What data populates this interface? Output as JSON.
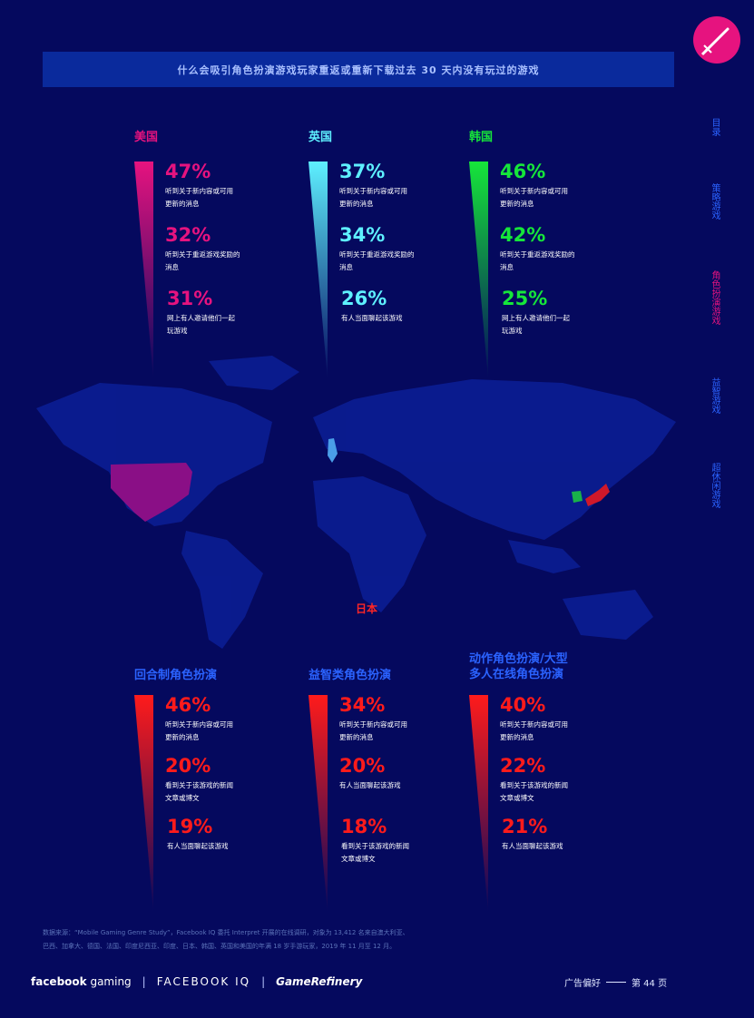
{
  "header": {
    "title": "什么会吸引角色扮演游戏玩家重返或重新下载过去 30 天内没有玩过的游戏"
  },
  "side_nav": {
    "items": [
      {
        "label": "目录",
        "active": false
      },
      {
        "label": "策略游戏",
        "active": false
      },
      {
        "label": "角色扮演游戏",
        "active": true
      },
      {
        "label": "益智游戏",
        "active": false
      },
      {
        "label": "超休闲游戏",
        "active": false
      }
    ]
  },
  "map_label": "日本",
  "colors": {
    "us": "#e6137f",
    "uk": "#5ef0ff",
    "kr": "#16e63a",
    "jp": "#ff1b1b",
    "nav": "#2b63ff",
    "background": "#05095e"
  },
  "chart_data": [
    {
      "type": "bar",
      "title": "美国",
      "categories": [
        "听到关于新内容或可用更新的消息",
        "听到关于重返游戏奖励的消息",
        "网上有人邀请他们一起玩游戏"
      ],
      "values": [
        47,
        32,
        31
      ],
      "value_labels": [
        "47%",
        "32%",
        "31%"
      ],
      "text_lines": [
        [
          "听到关于新内容或可用",
          "更新的消息"
        ],
        [
          "听到关于重返游戏奖励的",
          "消息"
        ],
        [
          "网上有人邀请他们一起",
          "玩游戏"
        ]
      ],
      "color": "#e6137f"
    },
    {
      "type": "bar",
      "title": "英国",
      "categories": [
        "听到关于新内容或可用更新的消息",
        "听到关于重返游戏奖励的消息",
        "有人当面聊起该游戏"
      ],
      "values": [
        37,
        34,
        26
      ],
      "value_labels": [
        "37%",
        "34%",
        "26%"
      ],
      "text_lines": [
        [
          "听到关于新内容或可用",
          "更新的消息"
        ],
        [
          "听到关于重返游戏奖励的",
          "消息"
        ],
        [
          "有人当面聊起该游戏"
        ]
      ],
      "color": "#5ef0ff"
    },
    {
      "type": "bar",
      "title": "韩国",
      "categories": [
        "听到关于新内容或可用更新的消息",
        "听到关于重返游戏奖励的消息",
        "网上有人邀请他们一起玩游戏"
      ],
      "values": [
        46,
        42,
        25
      ],
      "value_labels": [
        "46%",
        "42%",
        "25%"
      ],
      "text_lines": [
        [
          "听到关于新内容或可用",
          "更新的消息"
        ],
        [
          "听到关于重返游戏奖励的",
          "消息"
        ],
        [
          "网上有人邀请他们一起",
          "玩游戏"
        ]
      ],
      "color": "#16e63a"
    },
    {
      "type": "bar",
      "title": "回合制角色扮演",
      "categories": [
        "听到关于新内容或可用更新的消息",
        "看到关于该游戏的新闻文章或博文",
        "有人当面聊起该游戏"
      ],
      "values": [
        46,
        20,
        19
      ],
      "value_labels": [
        "46%",
        "20%",
        "19%"
      ],
      "text_lines": [
        [
          "听到关于新内容或可用",
          "更新的消息"
        ],
        [
          "看到关于该游戏的新闻",
          "文章或博文"
        ],
        [
          "有人当面聊起该游戏"
        ]
      ],
      "color": "#ff1b1b"
    },
    {
      "type": "bar",
      "title": "益智类角色扮演",
      "categories": [
        "听到关于新内容或可用更新的消息",
        "有人当面聊起该游戏",
        "看到关于该游戏的新闻文章或博文"
      ],
      "values": [
        34,
        20,
        18
      ],
      "value_labels": [
        "34%",
        "20%",
        "18%"
      ],
      "text_lines": [
        [
          "听到关于新内容或可用",
          "更新的消息"
        ],
        [
          "有人当面聊起该游戏"
        ],
        [
          "看到关于该游戏的新闻",
          "文章或博文"
        ]
      ],
      "color": "#ff1b1b"
    },
    {
      "type": "bar",
      "title": "动作角色扮演/大型多人在线角色扮演",
      "title_lines": [
        "动作角色扮演/大型",
        "多人在线角色扮演"
      ],
      "categories": [
        "听到关于新内容或可用更新的消息",
        "看到关于该游戏的新闻文章或博文",
        "有人当面聊起该游戏"
      ],
      "values": [
        40,
        22,
        21
      ],
      "value_labels": [
        "40%",
        "22%",
        "21%"
      ],
      "text_lines": [
        [
          "听到关于新内容或可用",
          "更新的消息"
        ],
        [
          "看到关于该游戏的新闻",
          "文章或博文"
        ],
        [
          "有人当面聊起该游戏"
        ]
      ],
      "color": "#ff1b1b"
    }
  ],
  "footnote": {
    "line1": "数据来源：“Mobile Gaming Genre Study”，Facebook IQ 委托 Interpret 开展的在线调研，对象为 13,412 名来自澳大利亚、",
    "line2": "巴西、加拿大、德国、法国、印度尼西亚、印度、日本、韩国、英国和美国的年满 18 岁手游玩家，2019 年 11 月至 12 月。"
  },
  "footer": {
    "logo1_a": "facebook",
    "logo1_b": " gaming",
    "logo2": "FACEBOOK IQ",
    "logo3": "GameRefinery",
    "section": "广告偏好",
    "page": "第 44 页"
  }
}
